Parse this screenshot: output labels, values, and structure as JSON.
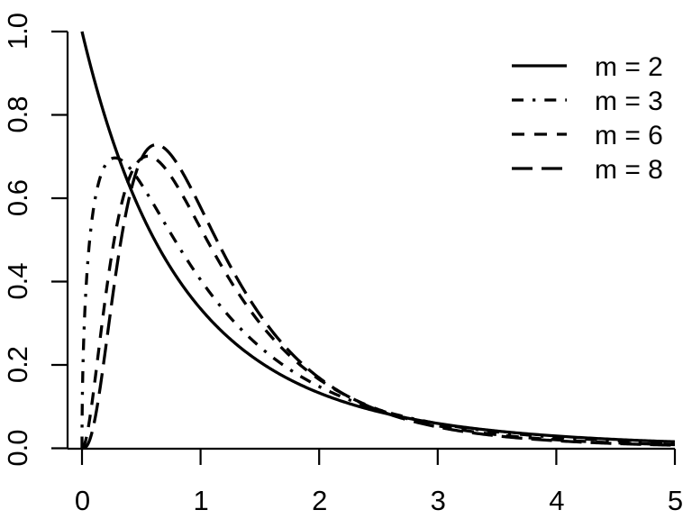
{
  "chart_data": {
    "type": "line",
    "title": "",
    "xlabel": "",
    "ylabel": "",
    "description": "Density curves of the F distribution with m numerator degrees of freedom (denominator df = 10), drawn in R base-graphics style with black curves distinguished by line type",
    "xlim": [
      0,
      5
    ],
    "ylim": [
      0.0,
      1.0
    ],
    "grid": "off",
    "box": "L-shaped axes only",
    "x_tick_values": [
      0,
      1,
      2,
      3,
      4,
      5
    ],
    "x_tick_labels": [
      "0",
      "1",
      "2",
      "3",
      "4",
      "5"
    ],
    "y_tick_values": [
      0.0,
      0.2,
      0.4,
      0.6,
      0.8,
      1.0
    ],
    "y_tick_labels": [
      "0.0",
      "0.2",
      "0.4",
      "0.6",
      "0.8",
      "1.0"
    ],
    "y_tick_label_rotation_deg": -90,
    "line_color": "#000000",
    "line_width": 3.3,
    "sample_x": [
      0.0,
      0.5,
      1.0,
      1.5,
      2.0,
      2.5,
      3.0,
      3.5,
      4.0,
      4.5,
      5.0
    ],
    "series": [
      {
        "label": "m = 2",
        "m": 2,
        "line_style": "solid",
        "dash": "",
        "density": {
          "coef": 1.0,
          "xpow": 0,
          "rate": 0.2,
          "negexp": 6
        },
        "peak": {
          "x": 0.0,
          "y": 1.0
        },
        "values": [
          1.0,
          0.5645,
          0.3349,
          0.2072,
          0.1328,
          0.0878,
          0.0596,
          0.0414,
          0.0294,
          0.0213,
          0.0156
        ]
      },
      {
        "label": "m = 3",
        "m": 3,
        "line_style": "dotdash",
        "dash": "13 10 3.3 10",
        "density": {
          "coef": 2.2241,
          "xpow": 0.5,
          "rate": 0.3,
          "negexp": 6.5
        },
        "peak": {
          "x": 0.28,
          "y": 0.7
        },
        "values": [
          0.0,
          0.6341,
          0.4042,
          0.2434,
          0.1483,
          0.0926,
          0.0594,
          0.0392,
          0.0264,
          0.0183,
          0.0129
        ]
      },
      {
        "label": "m = 6",
        "m": 6,
        "line_style": "dashed",
        "dash": "14 11",
        "density": {
          "coef": 22.68,
          "xpow": 2,
          "rate": 0.6,
          "negexp": 8
        },
        "peak": {
          "x": 0.56,
          "y": 0.7
        },
        "values": [
          0.0,
          0.6951,
          0.528,
          0.3005,
          0.1653,
          0.0929,
          0.054,
          0.0326,
          0.0203,
          0.0131,
          0.0087
        ]
      },
      {
        "label": "m = 8",
        "m": 8,
        "line_style": "longdash",
        "dash": "23 10",
        "density": {
          "coef": 114.688,
          "xpow": 3,
          "rate": 0.8,
          "negexp": 9
        },
        "peak": {
          "x": 0.63,
          "y": 0.73
        },
        "values": [
          0.0,
          0.6939,
          0.5782,
          0.3206,
          0.169,
          0.091,
          0.051,
          0.0298,
          0.018,
          0.0113,
          0.0073
        ]
      }
    ],
    "legend": {
      "position": "top-right",
      "border": "none",
      "items": [
        "m = 2",
        "m = 3",
        "m = 6",
        "m = 8"
      ]
    }
  }
}
